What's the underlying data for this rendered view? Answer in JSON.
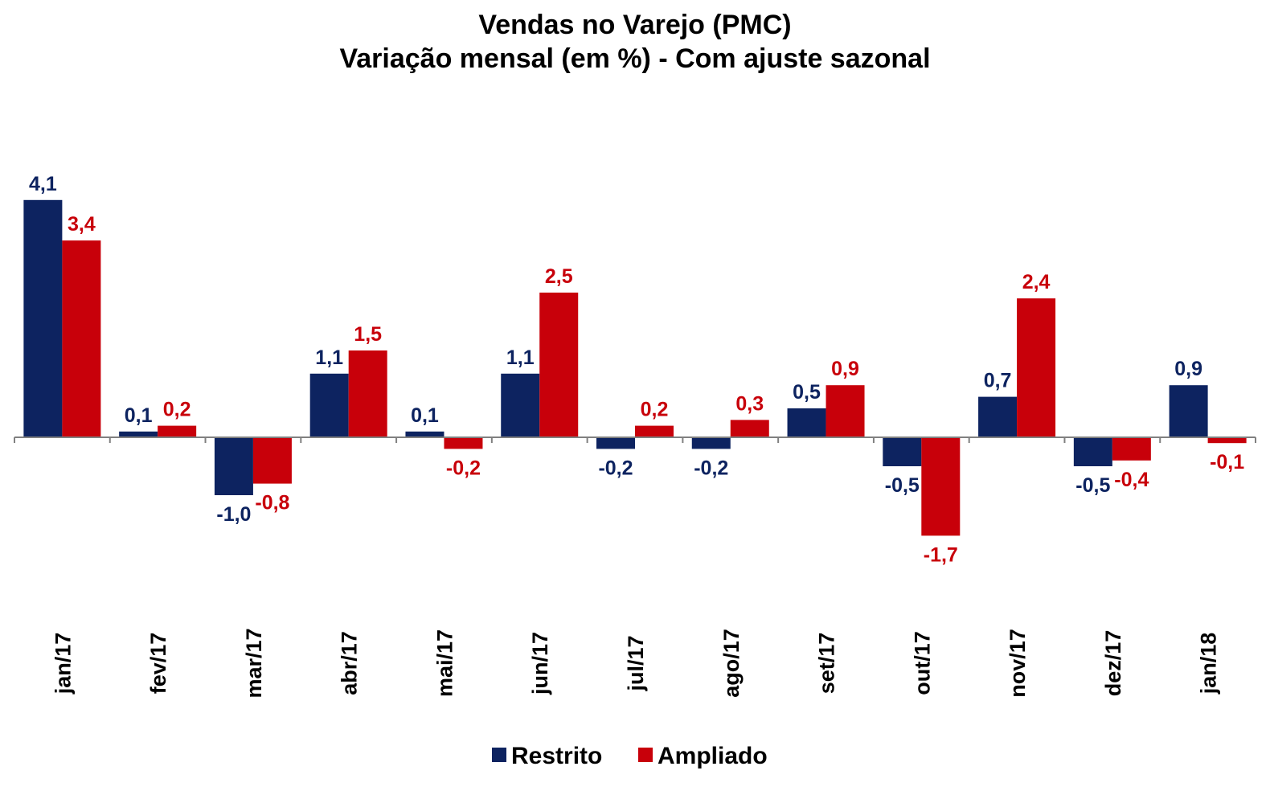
{
  "chart_data": {
    "type": "bar",
    "title": "Vendas no Varejo (PMC)",
    "subtitle": "Variação mensal (em %) - Com ajuste sazonal",
    "categories": [
      "jan/17",
      "fev/17",
      "mar/17",
      "abr/17",
      "mai/17",
      "jun/17",
      "jul/17",
      "ago/17",
      "set/17",
      "out/17",
      "nov/17",
      "dez/17",
      "jan/18"
    ],
    "series": [
      {
        "name": "Restrito",
        "color": "#0d2360",
        "values": [
          4.1,
          0.1,
          -1.0,
          1.1,
          0.1,
          1.1,
          -0.2,
          -0.2,
          0.5,
          -0.5,
          0.7,
          -0.5,
          0.9
        ],
        "labels": [
          "4,1",
          "0,1",
          "-1,0",
          "1,1",
          "0,1",
          "1,1",
          "-0,2",
          "-0,2",
          "0,5",
          "-0,5",
          "0,7",
          "-0,5",
          "0,9"
        ]
      },
      {
        "name": "Ampliado",
        "color": "#c8000a",
        "values": [
          3.4,
          0.2,
          -0.8,
          1.5,
          -0.2,
          2.5,
          0.2,
          0.3,
          0.9,
          -1.7,
          2.4,
          -0.4,
          -0.1
        ],
        "labels": [
          "3,4",
          "0,2",
          "-0,8",
          "1,5",
          "-0,2",
          "2,5",
          "0,2",
          "0,3",
          "0,9",
          "-1,7",
          "2,4",
          "-0,4",
          "-0,1"
        ]
      }
    ],
    "xlabel": "",
    "ylabel": "",
    "ylim": [
      -2.3,
      4.1
    ],
    "grid": false,
    "legend_position": "bottom"
  }
}
